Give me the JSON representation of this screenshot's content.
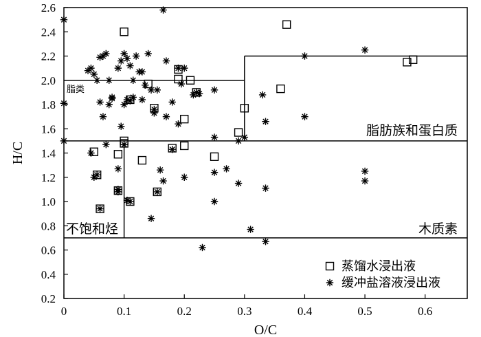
{
  "chart_data": {
    "type": "scatter",
    "xlabel": "O/C",
    "ylabel": "H/C",
    "xlim": [
      0,
      0.67
    ],
    "ylim": [
      0.2,
      2.6
    ],
    "x_ticks": [
      "0",
      "0.1",
      "0.2",
      "0.3",
      "0.4",
      "0.5",
      "0.6"
    ],
    "y_ticks": [
      "0.2",
      "0.4",
      "0.6",
      "0.8",
      "1.0",
      "1.2",
      "1.4",
      "1.6",
      "1.8",
      "2.0",
      "2.2",
      "2.4",
      "2.6"
    ],
    "grid": false,
    "legend_position": "bottom-right",
    "regions": [
      {
        "label": "脂类",
        "x": [
          0,
          0.3
        ],
        "y": [
          1.5,
          2.0
        ]
      },
      {
        "label": "脂肪族和蛋白质",
        "x": [
          0.3,
          0.67
        ],
        "y": [
          1.5,
          2.2
        ]
      },
      {
        "label": "不饱和烃",
        "x": [
          0,
          0.1
        ],
        "y": [
          0.7,
          1.5
        ]
      },
      {
        "label": "木质素",
        "x": [
          0.1,
          0.67
        ],
        "y": [
          0.7,
          1.5
        ]
      }
    ],
    "series": [
      {
        "name": "蒸馏水浸出液",
        "marker": "square",
        "x": [
          0.1,
          0.21,
          0.14,
          0.11,
          0.15,
          0.19,
          0.19,
          0.22,
          0.2,
          0.1,
          0.29,
          0.3,
          0.36,
          0.37,
          0.57,
          0.58,
          0.05,
          0.055,
          0.09,
          0.1,
          0.13,
          0.18,
          0.2,
          0.25,
          0.09,
          0.155,
          0.06,
          0.11
        ],
        "y": [
          2.4,
          2.0,
          1.97,
          1.84,
          1.77,
          2.09,
          2.01,
          1.9,
          1.68,
          1.5,
          1.57,
          1.77,
          1.93,
          2.46,
          2.15,
          2.17,
          1.41,
          1.22,
          1.39,
          1.48,
          1.34,
          1.44,
          1.46,
          1.37,
          1.09,
          1.08,
          0.94,
          1.0
        ]
      },
      {
        "name": "缓冲盐溶液浸出液",
        "marker": "asterisk",
        "x": [
          0,
          0,
          0,
          0.04,
          0.045,
          0.05,
          0.055,
          0.06,
          0.065,
          0.07,
          0.075,
          0.08,
          0.09,
          0.095,
          0.1,
          0.105,
          0.11,
          0.115,
          0.12,
          0.125,
          0.13,
          0.135,
          0.14,
          0.145,
          0.15,
          0.155,
          0.165,
          0.17,
          0.18,
          0.19,
          0.195,
          0.2,
          0.215,
          0.225,
          0.25,
          0.29,
          0.3,
          0.33,
          0.06,
          0.065,
          0.075,
          0.08,
          0.095,
          0.1,
          0.105,
          0.11,
          0.115,
          0.13,
          0.15,
          0.17,
          0.19,
          0.22,
          0.25,
          0.045,
          0.05,
          0.07,
          0.09,
          0.1,
          0.18,
          0.16,
          0.2,
          0.25,
          0.27,
          0.09,
          0.11,
          0.155,
          0.29,
          0.25,
          0.055,
          0.06,
          0.09,
          0.105,
          0.145,
          0.165,
          0.23,
          0.31,
          0.335,
          0.335,
          0.335,
          0.4,
          0.4,
          0.5,
          0.5,
          0.5
        ],
        "y": [
          2.5,
          1.81,
          1.5,
          2.08,
          2.1,
          2.05,
          2.0,
          2.19,
          2.2,
          2.22,
          2.0,
          1.86,
          2.1,
          2.16,
          2.22,
          2.18,
          2.12,
          2.0,
          2.2,
          2.07,
          2.07,
          1.96,
          2.22,
          1.92,
          1.73,
          1.92,
          2.58,
          2.16,
          1.82,
          2.1,
          1.97,
          2.1,
          1.88,
          1.89,
          1.92,
          1.5,
          1.53,
          1.88,
          1.82,
          1.7,
          1.8,
          1.85,
          1.62,
          1.8,
          1.84,
          1.83,
          1.86,
          1.84,
          1.76,
          1.7,
          1.64,
          1.9,
          1.53,
          1.4,
          1.2,
          1.47,
          1.27,
          1.47,
          1.43,
          1.26,
          1.2,
          1.24,
          1.27,
          1.1,
          1.0,
          1.08,
          1.15,
          1.0,
          1.22,
          0.94,
          1.08,
          1.01,
          0.86,
          1.17,
          0.62,
          0.77,
          0.67,
          1.11,
          1.66,
          1.7,
          2.2,
          1.25,
          1.17,
          2.25
        ]
      }
    ]
  }
}
